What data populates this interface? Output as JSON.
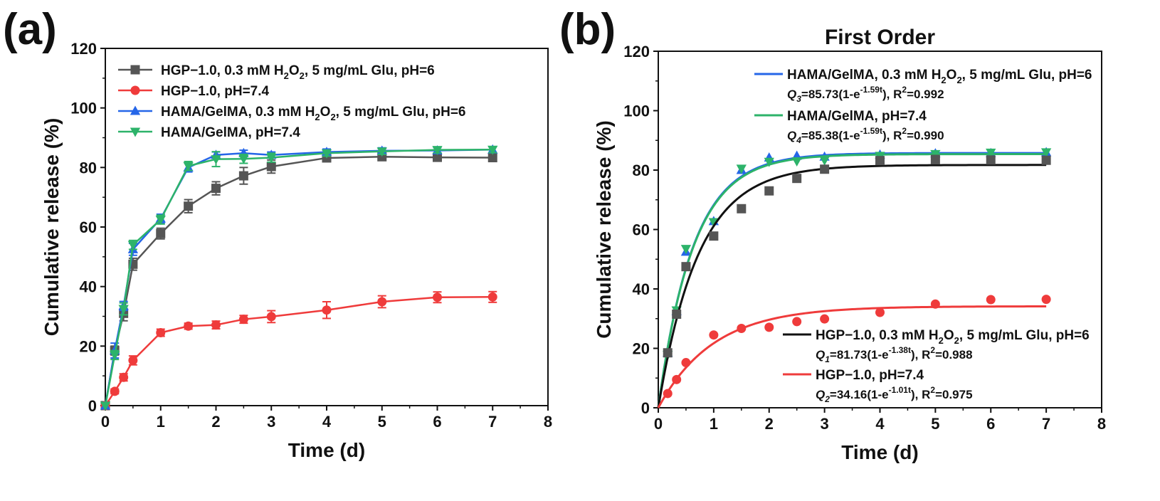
{
  "chart_data": [
    {
      "panel_label": "(a)",
      "type": "line",
      "title": "",
      "xlabel": "Time (d)",
      "ylabel": "Cumulative release (%)",
      "xlim": [
        0,
        8
      ],
      "ylim": [
        0,
        120
      ],
      "xticks": [
        "0",
        "1",
        "2",
        "3",
        "4",
        "5",
        "6",
        "7",
        "8"
      ],
      "yticks": [
        "0",
        "20",
        "40",
        "60",
        "80",
        "100",
        "120"
      ],
      "legend_position": "top-left",
      "x": [
        0,
        0.17,
        0.33,
        0.5,
        1,
        1.5,
        2,
        2.5,
        3,
        4,
        5,
        6,
        7
      ],
      "series": [
        {
          "name_main": "HGP−1.0, 0.3 mM H",
          "name_sub": "2",
          "name_tail": "O",
          "name_sub2": "2",
          "name_end": ", 5 mg/mL Glu,  pH=6",
          "color": "#555555",
          "marker": "square",
          "values": [
            0,
            18.5,
            31,
            47.5,
            57.8,
            67,
            73,
            77.2,
            80.3,
            83.2,
            83.6,
            83.4,
            83.3
          ],
          "errors": [
            0,
            1.5,
            2.5,
            2,
            1.8,
            2.2,
            2.2,
            2.8,
            2.2,
            1.2,
            1,
            1,
            1
          ]
        },
        {
          "name_main": "HGP−1.0, pH=7.4",
          "color": "#ef3b3b",
          "marker": "circle",
          "values": [
            0,
            4.8,
            9.5,
            15.2,
            24.5,
            26.7,
            27.1,
            29,
            29.9,
            32.1,
            34.9,
            36.4,
            36.5
          ],
          "errors": [
            0,
            0.8,
            1.2,
            1.5,
            1.2,
            1.0,
            1.3,
            1.3,
            2.0,
            2.8,
            2.0,
            1.8,
            1.8
          ]
        },
        {
          "name_main": "HAMA/GelMA, 0.3 mM H",
          "name_sub": "2",
          "name_tail": "O",
          "name_sub2": "2",
          "name_end": ", 5 mg/mL Glu,  pH=6",
          "color": "#2566e8",
          "marker": "triangle-up",
          "values": [
            0,
            18.5,
            33.5,
            52.5,
            62.8,
            80,
            84.2,
            84.8,
            84.2,
            85.2,
            85.6,
            85.7,
            86
          ],
          "errors": [
            0,
            2.5,
            1.5,
            2,
            1.5,
            1.5,
            1,
            1,
            1,
            1,
            1,
            1,
            1
          ]
        },
        {
          "name_main": "HAMA/GelMA, pH=7.4",
          "color": "#2db36a",
          "marker": "triangle-down",
          "values": [
            0,
            17,
            32.5,
            54,
            62.5,
            80.5,
            82.8,
            82.9,
            83.3,
            84.8,
            85.4,
            85.9,
            86
          ],
          "errors": [
            0,
            1.5,
            2,
            1.5,
            1.5,
            1.5,
            2.5,
            1.5,
            1.5,
            1,
            1,
            1,
            1
          ]
        }
      ]
    },
    {
      "panel_label": "(b)",
      "type": "scatter",
      "title": "First Order",
      "xlabel": "Time (d)",
      "ylabel": "Cumulative release (%)",
      "xlim": [
        0,
        8
      ],
      "ylim": [
        0,
        120
      ],
      "xticks": [
        "0",
        "1",
        "2",
        "3",
        "4",
        "5",
        "6",
        "7",
        "8"
      ],
      "yticks": [
        "0",
        "20",
        "40",
        "60",
        "80",
        "100",
        "120"
      ],
      "x": [
        0.17,
        0.33,
        0.5,
        1,
        1.5,
        2,
        2.5,
        3,
        4,
        5,
        6,
        7
      ],
      "series": [
        {
          "name_main": "HAMA/GelMA, 0.3 mM H",
          "name_sub": "2",
          "name_tail": "O",
          "name_sub2": "2",
          "name_end": ", 5 mg/mL Glu,  pH=6",
          "eq_q": "Q",
          "eq_idx": "3",
          "eq_mid": "=85.73(1-e",
          "eq_exp": "-1.59t",
          "eq_end": "), R",
          "eq_r2": "=0.992",
          "fit_a": 85.73,
          "fit_k": 1.59,
          "color": "#2566e8",
          "marker": "triangle-up",
          "values": [
            18.5,
            32.5,
            52.5,
            62.8,
            80,
            84.2,
            84.8,
            84.5,
            85.2,
            85.6,
            85.7,
            86
          ]
        },
        {
          "name_main": "HAMA/GelMA, pH=7.4",
          "eq_q": "Q",
          "eq_idx": "4",
          "eq_mid": "=85.38(1-e",
          "eq_exp": "-1.59t",
          "eq_end": "), R",
          "eq_r2": "=0.990",
          "fit_a": 85.38,
          "fit_k": 1.59,
          "color": "#2db36a",
          "marker": "triangle-down",
          "values": [
            17.8,
            32.8,
            53.5,
            62.5,
            80.5,
            82.8,
            83,
            83.3,
            84.8,
            85.4,
            85.9,
            86
          ]
        },
        {
          "name_main": "HGP−1.0, 0.3 mM H",
          "name_sub": "2",
          "name_tail": "O",
          "name_sub2": "2",
          "name_end": ", 5 mg/mL Glu,  pH=6",
          "eq_q": "Q",
          "eq_idx": "1",
          "eq_mid": "=81.73(1-e",
          "eq_exp": "-1.38t",
          "eq_end": "), R",
          "eq_r2": "=0.988",
          "fit_a": 81.73,
          "fit_k": 1.38,
          "color": "#111111",
          "marker_color": "#555555",
          "marker": "square",
          "values": [
            18.5,
            31.5,
            47.5,
            57.8,
            67,
            73,
            77.2,
            80.3,
            83.2,
            83.6,
            83.4,
            83.3
          ]
        },
        {
          "name_main": "HGP−1.0, pH=7.4",
          "eq_q": "Q",
          "eq_idx": "2",
          "eq_mid": "=34.16(1-e",
          "eq_exp": "-1.01t",
          "eq_end": "), R",
          "eq_r2": "=0.975",
          "fit_a": 34.16,
          "fit_k": 1.01,
          "color": "#ef3b3b",
          "marker": "circle",
          "values": [
            4.8,
            9.5,
            15.2,
            24.5,
            26.7,
            27.1,
            29,
            29.9,
            32.1,
            34.9,
            36.4,
            36.5
          ]
        }
      ]
    }
  ]
}
